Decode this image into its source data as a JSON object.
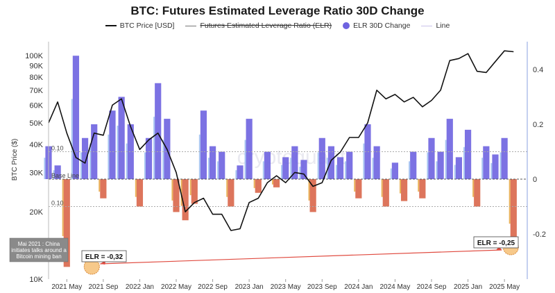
{
  "chart_data": {
    "type": "line",
    "title": "BTC: Futures Estimated Leverage Ratio 30D Change",
    "ylabel": "BTC Price ($)",
    "x_ticks": [
      "2021 May",
      "2021 Sep",
      "2022 Jan",
      "2022 May",
      "2022 Sep",
      "2023 Jan",
      "2023 May",
      "2023 Sep",
      "2024 Jan",
      "2024 May",
      "2024 Sep",
      "2025 Jan",
      "2025 May"
    ],
    "y_left_ticks": [
      "10K",
      "20K",
      "30K",
      "40K",
      "50K",
      "60K",
      "70K",
      "80K",
      "90K",
      "100K"
    ],
    "y_left_values": [
      10000,
      20000,
      30000,
      40000,
      50000,
      60000,
      70000,
      80000,
      90000,
      100000
    ],
    "y_left_scale": "log",
    "y_right_ticks": [
      "-0.2",
      "0",
      "0.2",
      "0.4"
    ],
    "y_right_values": [
      -0.2,
      0,
      0.2,
      0.4
    ],
    "legend": [
      "BTC Price [USD]",
      "Futures Estimated Leverage Ratio (ELR)",
      "ELR 30D Change",
      "Line"
    ],
    "reference_lines": [
      {
        "label": "Base Line",
        "value": 0
      },
      {
        "label": "0.10",
        "value": 0.1
      },
      {
        "label": "0.10",
        "value": -0.1
      }
    ],
    "series": [
      {
        "name": "BTC Price [USD]",
        "x": [
          "2021-03",
          "2021-04",
          "2021-05",
          "2021-06",
          "2021-07",
          "2021-08",
          "2021-09",
          "2021-10",
          "2021-11",
          "2021-12",
          "2022-01",
          "2022-02",
          "2022-03",
          "2022-04",
          "2022-05",
          "2022-06",
          "2022-07",
          "2022-08",
          "2022-09",
          "2022-10",
          "2022-11",
          "2022-12",
          "2023-01",
          "2023-02",
          "2023-03",
          "2023-04",
          "2023-05",
          "2023-06",
          "2023-07",
          "2023-08",
          "2023-09",
          "2023-10",
          "2023-11",
          "2023-12",
          "2024-01",
          "2024-02",
          "2024-03",
          "2024-04",
          "2024-05",
          "2024-06",
          "2024-07",
          "2024-08",
          "2024-09",
          "2024-10",
          "2024-11",
          "2024-12",
          "2025-01",
          "2025-02",
          "2025-03",
          "2025-04",
          "2025-05",
          "2025-06"
        ],
        "values": [
          50000,
          62000,
          45000,
          35000,
          33000,
          45000,
          44000,
          60000,
          64000,
          48000,
          38000,
          42000,
          45000,
          38000,
          30000,
          20000,
          22000,
          23000,
          19500,
          19500,
          16500,
          16800,
          22000,
          23000,
          27000,
          29000,
          27000,
          30000,
          29500,
          26000,
          27000,
          34000,
          37000,
          43000,
          43000,
          50000,
          70000,
          64000,
          67000,
          62000,
          65000,
          59000,
          63000,
          70000,
          95000,
          97000,
          102000,
          85000,
          84000,
          94000,
          105000,
          104000
        ]
      },
      {
        "name": "ELR 30D Change",
        "x": [
          "2021-03",
          "2021-04",
          "2021-05",
          "2021-06",
          "2021-07",
          "2021-08",
          "2021-09",
          "2021-10",
          "2021-11",
          "2021-12",
          "2022-01",
          "2022-02",
          "2022-03",
          "2022-04",
          "2022-05",
          "2022-06",
          "2022-07",
          "2022-08",
          "2022-09",
          "2022-10",
          "2022-11",
          "2022-12",
          "2023-01",
          "2023-02",
          "2023-03",
          "2023-04",
          "2023-05",
          "2023-06",
          "2023-07",
          "2023-08",
          "2023-09",
          "2023-10",
          "2023-11",
          "2023-12",
          "2024-01",
          "2024-02",
          "2024-03",
          "2024-04",
          "2024-05",
          "2024-06",
          "2024-07",
          "2024-08",
          "2024-09",
          "2024-10",
          "2024-11",
          "2024-12",
          "2025-01",
          "2025-02",
          "2025-03",
          "2025-04",
          "2025-05",
          "2025-06"
        ],
        "values": [
          0.12,
          0.05,
          -0.32,
          0.45,
          0.15,
          0.2,
          -0.07,
          0.25,
          0.3,
          0.2,
          -0.1,
          0.15,
          0.35,
          0.22,
          -0.12,
          -0.15,
          -0.09,
          0.25,
          0.12,
          0.1,
          -0.1,
          0.05,
          0.22,
          -0.05,
          0.1,
          -0.03,
          0.08,
          0.12,
          0.07,
          -0.12,
          0.15,
          0.12,
          0.08,
          0.1,
          -0.07,
          0.2,
          0.12,
          -0.1,
          0.06,
          -0.08,
          0.1,
          -0.07,
          0.15,
          0.1,
          0.22,
          0.08,
          0.18,
          -0.1,
          0.12,
          0.09,
          0.15,
          -0.25
        ]
      }
    ],
    "annotations": [
      {
        "text": "Mai 2021 : China initiates talks around a Bitcoin mining ban",
        "x": "2021-05"
      },
      {
        "text": "ELR = -0,32",
        "x": "2021-05",
        "y": -0.32
      },
      {
        "text": "ELR = -0,25",
        "x": "2025-06",
        "y": -0.25
      }
    ],
    "watermark": "cryptoquant",
    "colors": {
      "price": "#111111",
      "positive": "#6e63e0",
      "positive_light": "#a9c6f2",
      "negative": "#d9664a",
      "negative_light": "#eab25a",
      "annotation": "#e04a3f",
      "marker": "#f7c98a"
    }
  }
}
